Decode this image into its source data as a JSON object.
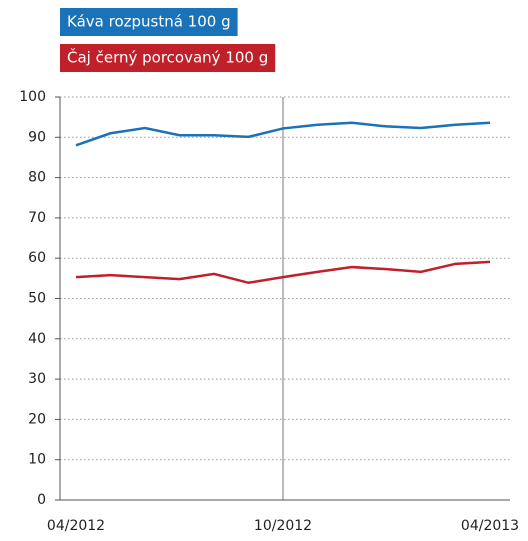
{
  "chart_data": {
    "type": "line",
    "categories": [
      "04/2012",
      null,
      null,
      null,
      null,
      null,
      "10/2012",
      null,
      null,
      null,
      null,
      null,
      "04/2013"
    ],
    "series": [
      {
        "name": "Káva rozpustná 100 g",
        "color": "#1a72b8",
        "values": [
          88,
          91,
          92.3,
          90.5,
          90.5,
          90.1,
          92.2,
          93.1,
          93.6,
          92.7,
          92.3,
          93.1,
          93.6
        ]
      },
      {
        "name": "Čaj černý porcovaný 100 g",
        "color": "#c0202a",
        "values": [
          55.3,
          55.8,
          55.3,
          54.8,
          56.1,
          53.9,
          55.3,
          56.6,
          57.8,
          57.3,
          56.6,
          58.6,
          59.1
        ]
      }
    ],
    "ylim": [
      0,
      100
    ],
    "yticks": [
      0,
      10,
      20,
      30,
      40,
      50,
      60,
      70,
      80,
      90,
      100
    ],
    "grid": true,
    "legend": "top-left"
  }
}
